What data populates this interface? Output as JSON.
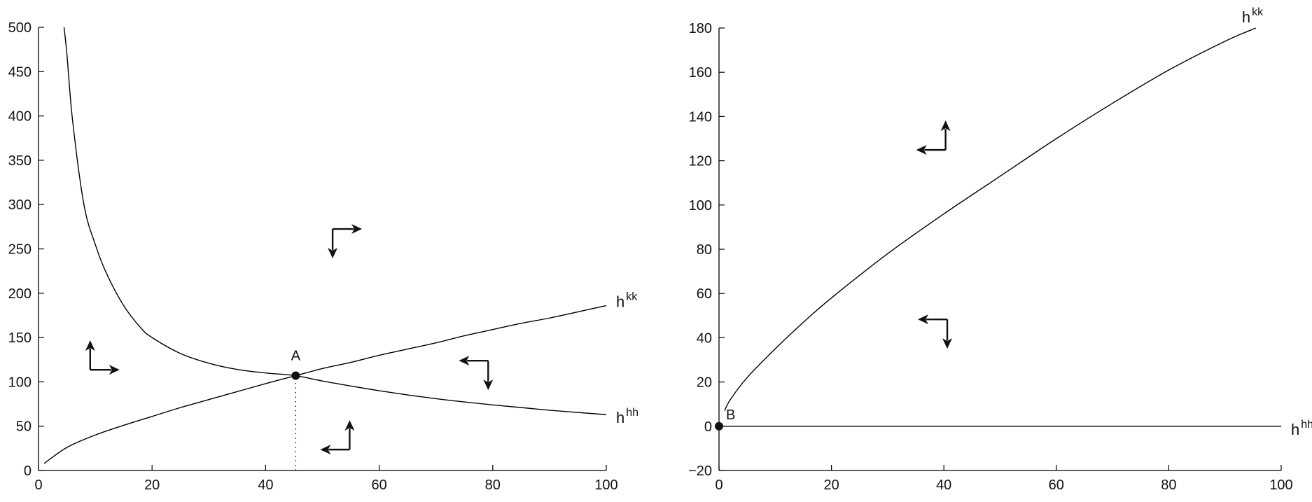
{
  "chart_data": [
    {
      "type": "line",
      "title": "",
      "xlabel": "",
      "ylabel": "",
      "xlim": [
        0,
        100
      ],
      "ylim": [
        0,
        500
      ],
      "x_ticks": [
        "0",
        "20",
        "40",
        "60",
        "80",
        "100"
      ],
      "y_ticks": [
        "0",
        "50",
        "100",
        "150",
        "200",
        "250",
        "300",
        "350",
        "400",
        "450",
        "500"
      ],
      "series": [
        {
          "name_base": "h",
          "name_sup": "kk",
          "x": [
            1,
            5,
            10,
            15,
            20,
            25,
            30,
            35,
            40,
            45.3,
            50,
            55,
            60,
            65,
            70,
            75,
            80,
            85,
            90,
            95,
            100
          ],
          "y": [
            8,
            26,
            40,
            51,
            61,
            71,
            80,
            89,
            98,
            107,
            115,
            122,
            130,
            137,
            144,
            152,
            159,
            166,
            172,
            179,
            186
          ]
        },
        {
          "name_base": "h",
          "name_sup": "hh",
          "x": [
            4.5,
            5,
            6,
            8,
            10,
            12,
            15,
            18,
            20,
            25,
            30,
            35,
            40,
            45.3,
            50,
            60,
            70,
            80,
            90,
            100
          ],
          "y": [
            500,
            470,
            395,
            300,
            255,
            222,
            186,
            161,
            150,
            132,
            121,
            114,
            110,
            107,
            101,
            90,
            81,
            74,
            68,
            63
          ]
        }
      ],
      "points": [
        {
          "label": "A",
          "x": 45.3,
          "y": 107
        }
      ],
      "guides": [
        {
          "x": 45.3,
          "y_from": 0,
          "y_to": 107
        }
      ],
      "phase_arrows": [
        {
          "x": 51.8,
          "y": 272.5,
          "dx": "right",
          "dy": "down"
        },
        {
          "x": 9.1,
          "y": 113.6,
          "dx": "right",
          "dy": "up"
        },
        {
          "x": 79.2,
          "y": 123.9,
          "dx": "left",
          "dy": "down"
        },
        {
          "x": 54.8,
          "y": 23.6,
          "dx": "left",
          "dy": "up"
        }
      ],
      "grid": false
    },
    {
      "type": "line",
      "title": "",
      "xlabel": "",
      "ylabel": "",
      "xlim": [
        0,
        100
      ],
      "ylim": [
        -20,
        180
      ],
      "x_ticks": [
        "0",
        "20",
        "40",
        "60",
        "80",
        "100"
      ],
      "y_ticks": [
        "−20",
        "0",
        "20",
        "40",
        "60",
        "80",
        "100",
        "120",
        "140",
        "160",
        "180"
      ],
      "series": [
        {
          "name_base": "h",
          "name_sup": "kk",
          "x": [
            1,
            2,
            5,
            10,
            15,
            20,
            30,
            40,
            50,
            60,
            70,
            80,
            90,
            95.5
          ],
          "y": [
            7,
            12,
            22,
            35,
            47,
            58,
            78,
            96,
            113,
            130,
            146,
            161,
            174,
            180
          ]
        },
        {
          "name_base": "h",
          "name_sup": "hh",
          "x": [
            0,
            100
          ],
          "y": [
            0,
            0
          ]
        }
      ],
      "points": [
        {
          "label": "B",
          "x": 0,
          "y": 0
        }
      ],
      "guides": [],
      "phase_arrows": [
        {
          "x": 40.3,
          "y": 124.9,
          "dx": "left",
          "dy": "up"
        },
        {
          "x": 40.6,
          "y": 48.3,
          "dx": "left",
          "dy": "down"
        }
      ],
      "grid": false
    }
  ]
}
